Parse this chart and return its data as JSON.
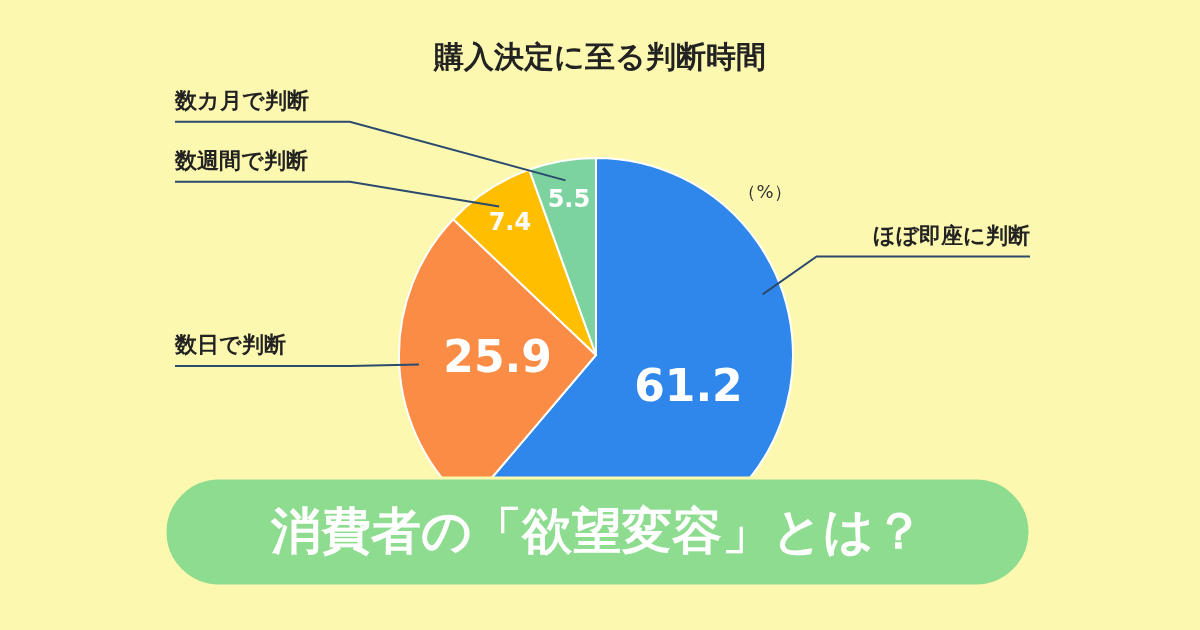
{
  "chart_data": {
    "type": "pie",
    "title": "購入決定に至る判断時間",
    "categories": [
      "ほぼ即座に判断",
      "数日で判断",
      "数週間で判断",
      "数カ月で判断"
    ],
    "values": [
      61.2,
      25.9,
      7.4,
      5.5
    ],
    "colors": [
      "#2f86eb",
      "#fb8c45",
      "#ffbe00",
      "#7dd3a0"
    ],
    "data_labels": true,
    "annotations": [
      "（%）",
      "消費者の「欲望変容」とは？"
    ]
  }
}
